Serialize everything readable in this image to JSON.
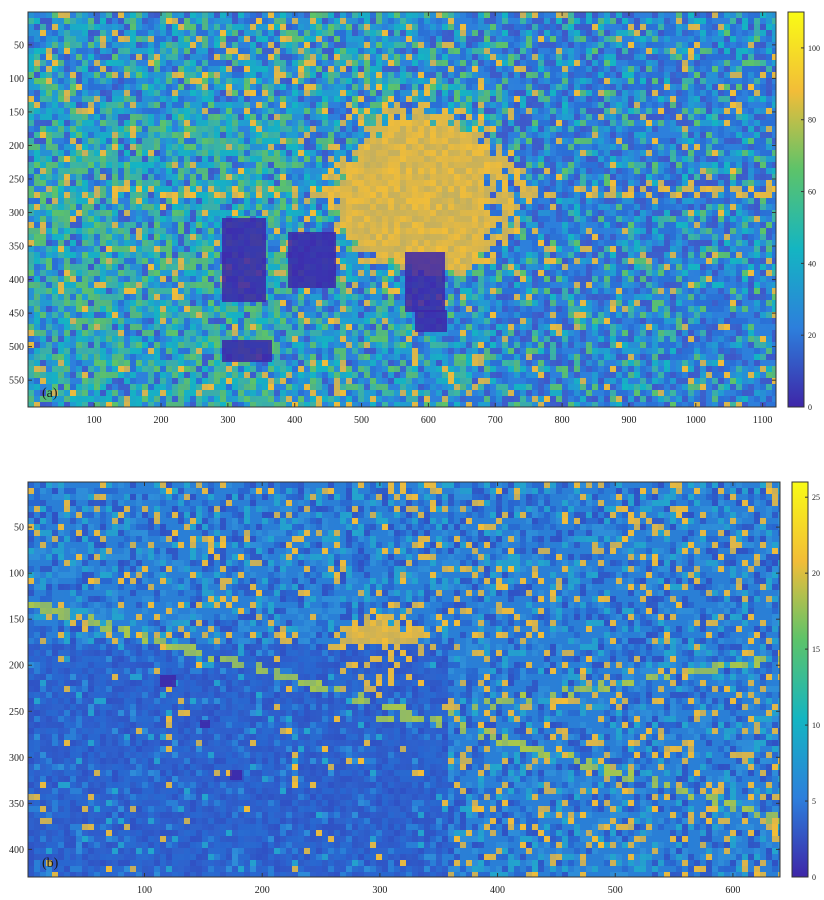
{
  "chart_data": [
    {
      "type": "heatmap",
      "panel_label": "(a)",
      "x_ticks": [
        100,
        200,
        300,
        400,
        500,
        600,
        700,
        800,
        900,
        1000,
        1100
      ],
      "y_ticks": [
        50,
        100,
        150,
        200,
        250,
        300,
        350,
        400,
        450,
        500,
        550
      ],
      "xlim": [
        1,
        1120
      ],
      "ylim": [
        1,
        590
      ],
      "colorbar": {
        "ticks": [
          0,
          20,
          40,
          60,
          80,
          100
        ],
        "range": [
          0,
          110
        ],
        "colormap": "parula"
      },
      "grid": false
    },
    {
      "type": "heatmap",
      "panel_label": "(b)",
      "x_ticks": [
        100,
        200,
        300,
        400,
        500,
        600
      ],
      "y_ticks": [
        50,
        100,
        150,
        200,
        250,
        300,
        350,
        400
      ],
      "xlim": [
        1,
        640
      ],
      "ylim": [
        1,
        430
      ],
      "colorbar": {
        "ticks": [
          0,
          5,
          10,
          15,
          20,
          25
        ],
        "range": [
          0,
          26
        ],
        "colormap": "parula"
      },
      "grid": false
    }
  ],
  "colors": {
    "low": "#3e26a8",
    "blue": "#2d7fdc",
    "cyan": "#14b5c2",
    "green": "#5cc36a",
    "yellow_orange": "#f2bd38",
    "yellow": "#f9fb15"
  }
}
